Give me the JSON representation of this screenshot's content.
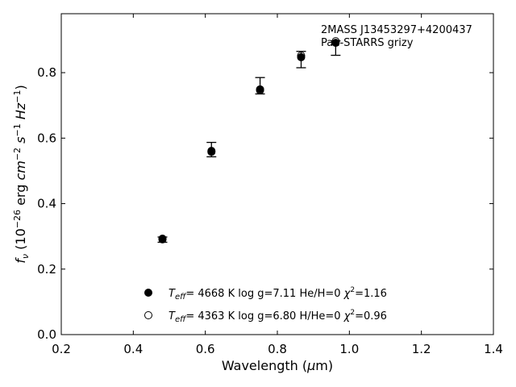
{
  "chart_data": {
    "type": "scatter",
    "xlabel": "Wavelength (μm)",
    "ylabel": "f_ν (10^-26 erg cm^-2 s^-1 Hz^-1)",
    "xlim": [
      0.2,
      1.4
    ],
    "ylim": [
      0.0,
      0.98
    ],
    "xticks": [
      "0.2",
      "0.4",
      "0.6",
      "0.8",
      "1.0",
      "1.2",
      "1.4"
    ],
    "yticks": [
      "0.0",
      "0.2",
      "0.4",
      "0.6",
      "0.8"
    ],
    "grid": false,
    "annotation": {
      "line1": "2MASS J13453297+4200437",
      "line2": "Pan-STARRS grizy"
    },
    "observed": {
      "x": [
        0.481,
        0.617,
        0.752,
        0.866,
        0.962
      ],
      "y": [
        0.29,
        0.565,
        0.76,
        0.84,
        0.875
      ],
      "yerr": [
        0.008,
        0.022,
        0.025,
        0.025,
        0.022
      ]
    },
    "series": [
      {
        "name": "Teff= 4668 K log g=7.11 He/H=0 χ2=1.16",
        "marker": "filled-circle",
        "x": [
          0.481,
          0.617,
          0.752,
          0.866,
          0.962
        ],
        "y": [
          0.293,
          0.561,
          0.749,
          0.847,
          0.891
        ]
      },
      {
        "name": "Teff= 4363 K log g=6.80 H/He=0 χ2=0.96",
        "marker": "open-circle",
        "x": [
          0.481,
          0.617,
          0.752,
          0.866,
          0.962
        ],
        "y": [
          0.291,
          0.558,
          0.746,
          0.852,
          0.896
        ]
      }
    ],
    "legend": [
      {
        "teff_val": "4668 K",
        "logg": "log g=7.11",
        "comp": "He/H=0",
        "chi": "=1.16"
      },
      {
        "teff_val": "4363 K",
        "logg": "log g=6.80",
        "comp": "H/He=0",
        "chi": "=0.96"
      }
    ]
  }
}
